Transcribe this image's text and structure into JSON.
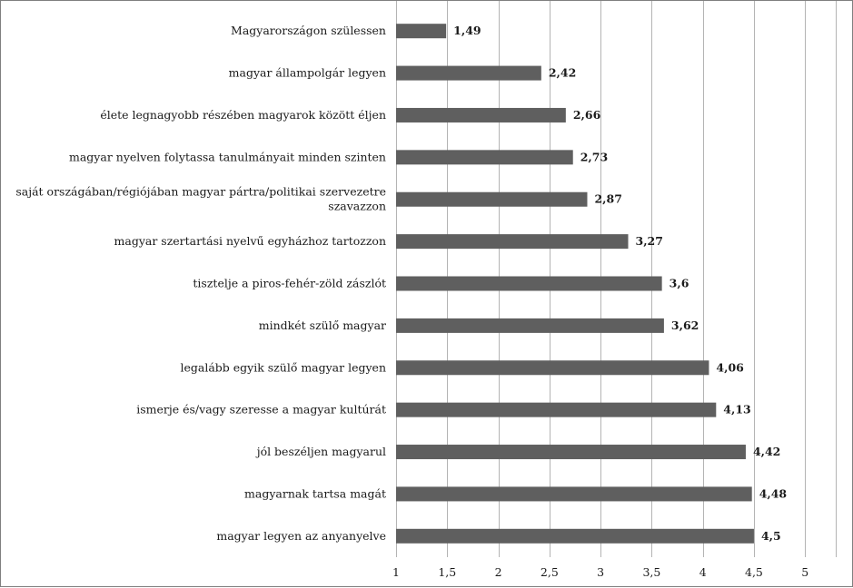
{
  "colors": {
    "bar": "#5f5f5f",
    "grid": "#b4b4b4",
    "frame": "#7f7f7f",
    "text": "#1a1a1a"
  },
  "chart_data": {
    "type": "bar",
    "orientation": "horizontal",
    "title": "",
    "xlabel": "",
    "ylabel": "",
    "xlim": [
      1,
      5.3
    ],
    "grid": true,
    "legend": "none",
    "x_ticks": [
      "1",
      "1,5",
      "2",
      "2,5",
      "3",
      "3,5",
      "4",
      "4,5",
      "5"
    ],
    "x_tick_values": [
      1,
      1.5,
      2,
      2.5,
      3,
      3.5,
      4,
      4.5,
      5
    ],
    "categories": [
      [
        "Magyarországon szülessen"
      ],
      [
        "magyar állampolgár legyen"
      ],
      [
        "élete legnagyobb részében magyarok között éljen"
      ],
      [
        "magyar nyelven folytassa tanulmányait minden szinten"
      ],
      [
        "saját országában/régiójában magyar pártra/politikai szervezetre",
        "szavazzon"
      ],
      [
        "magyar szertartási nyelvű egyházhoz tartozzon"
      ],
      [
        "tisztelje a piros-fehér-zöld zászlót"
      ],
      [
        "mindkét szülő magyar"
      ],
      [
        "legalább egyik szülő magyar legyen"
      ],
      [
        "ismerje és/vagy szeresse a magyar kultúrát"
      ],
      [
        "jól beszéljen magyarul"
      ],
      [
        "magyarnak tartsa magát"
      ],
      [
        "magyar legyen az anyanyelve"
      ]
    ],
    "values": [
      1.49,
      2.42,
      2.66,
      2.73,
      2.87,
      3.27,
      3.6,
      3.62,
      4.06,
      4.13,
      4.42,
      4.48,
      4.5
    ],
    "value_labels": [
      "1,49",
      "2,42",
      "2,66",
      "2,73",
      "2,87",
      "3,27",
      "3,6",
      "3,62",
      "4,06",
      "4,13",
      "4,42",
      "4,48",
      "4,5"
    ]
  }
}
